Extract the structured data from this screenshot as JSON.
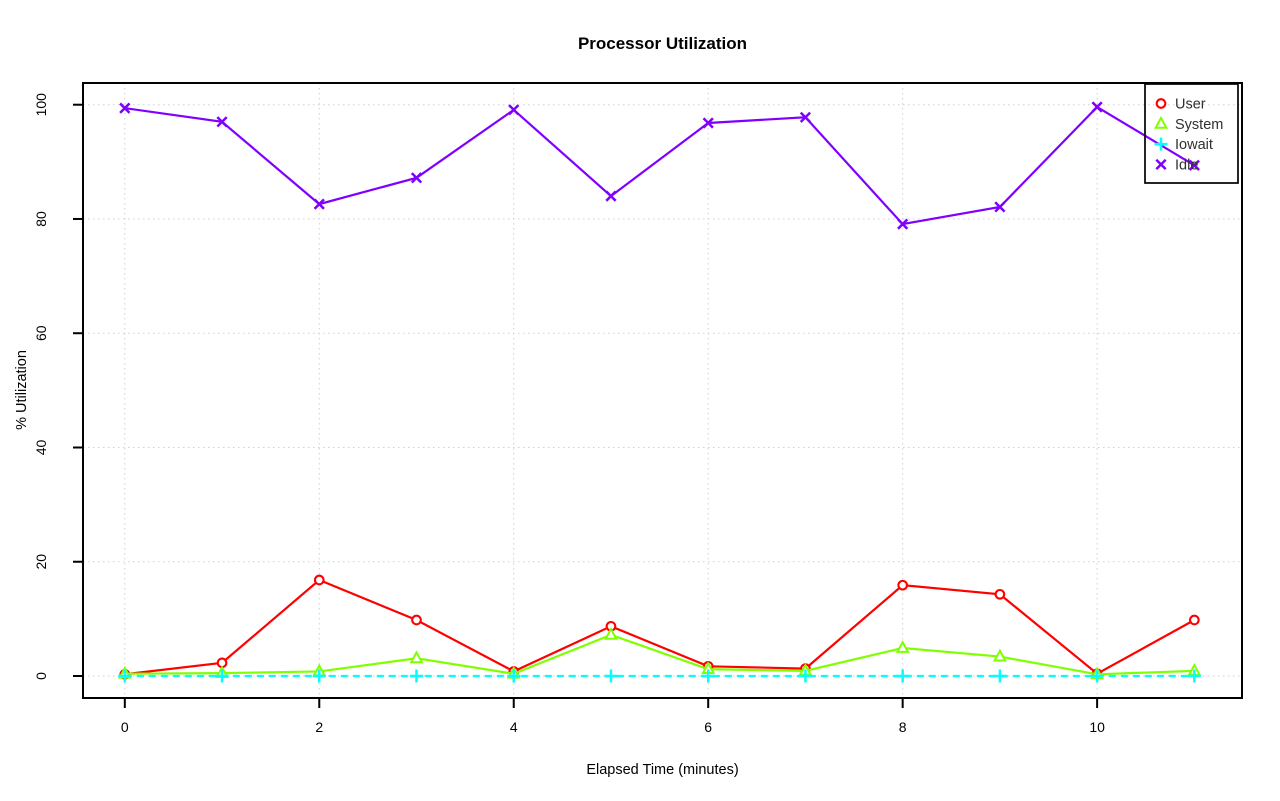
{
  "title": "Processor Utilization",
  "chart_data": {
    "type": "line",
    "title": "Processor Utilization",
    "xlabel": "Elapsed Time (minutes)",
    "ylabel": "% Utilization",
    "x": [
      0,
      1,
      2,
      3,
      4,
      5,
      6,
      7,
      8,
      9,
      10,
      11
    ],
    "xticks": [
      0,
      2,
      4,
      6,
      8,
      10
    ],
    "yticks": [
      0,
      20,
      40,
      60,
      80,
      100
    ],
    "xlim": [
      -0.43,
      11.49
    ],
    "ylim": [
      -3.85,
      103.8
    ],
    "grid": "dotted gray at all ticks, both axes",
    "legend_position": "top-right",
    "background": "#ffffff",
    "axis_color": "#000000",
    "grid_color": "#cfcfcf",
    "series": [
      {
        "name": "User",
        "color": "#FF0000",
        "marker": "circle",
        "line": "solid",
        "values": [
          0.3,
          2.3,
          16.8,
          9.8,
          0.8,
          8.7,
          1.7,
          1.3,
          15.9,
          14.3,
          0.4,
          9.8
        ]
      },
      {
        "name": "System",
        "color": "#80FF00",
        "marker": "triangle",
        "line": "solid",
        "values": [
          0.4,
          0.5,
          0.8,
          3.1,
          0.4,
          7.2,
          1.2,
          0.9,
          4.9,
          3.4,
          0.3,
          0.9
        ]
      },
      {
        "name": "Iowait",
        "color": "#00FFFF",
        "marker": "plus",
        "line": "dashed",
        "values": [
          0,
          0,
          0,
          0,
          0,
          0,
          0,
          0,
          0,
          0,
          0,
          0
        ]
      },
      {
        "name": "Idle",
        "color": "#8000FF",
        "marker": "x",
        "line": "solid",
        "values": [
          99.4,
          97.0,
          82.6,
          87.2,
          99.1,
          84.0,
          96.8,
          97.8,
          79.1,
          82.1,
          99.6,
          89.4
        ]
      }
    ]
  }
}
